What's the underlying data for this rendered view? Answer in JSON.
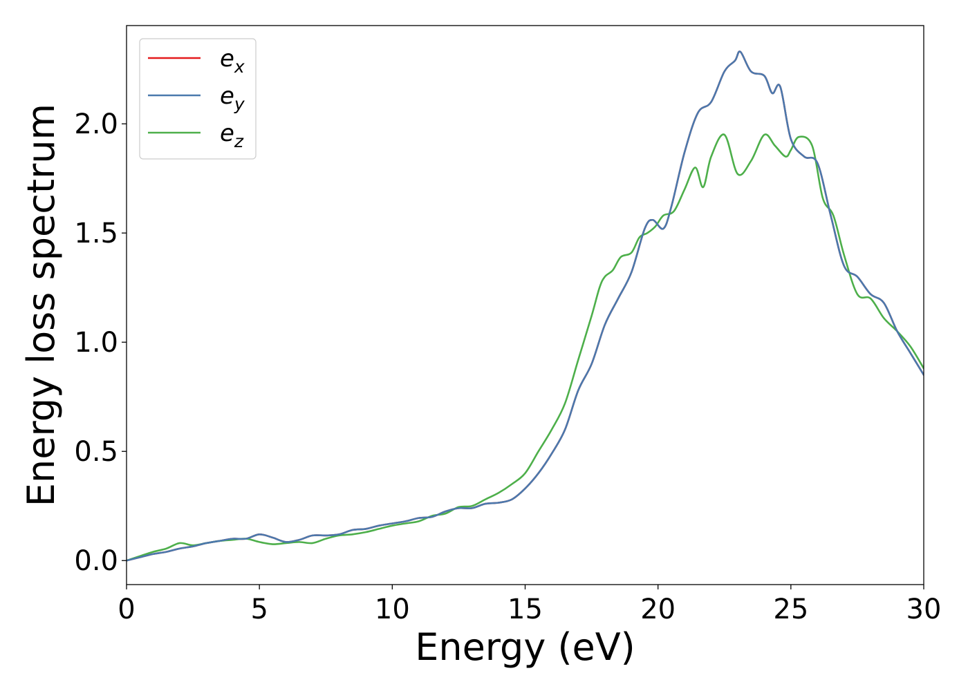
{
  "chart_data": {
    "type": "line",
    "title": "",
    "xlabel": "Energy (eV)",
    "ylabel": "Energy loss spectrum",
    "xlim": [
      0,
      30
    ],
    "ylim": [
      -0.11,
      2.45
    ],
    "xticks": [
      "0",
      "5",
      "10",
      "15",
      "20",
      "25",
      "30"
    ],
    "yticks": [
      "0.0",
      "0.5",
      "1.0",
      "1.5",
      "2.0"
    ],
    "grid": false,
    "legend_position": "top-left",
    "series": [
      {
        "name": "e_x",
        "label_main": "e",
        "label_sub": "x",
        "color": "#e41a1c",
        "x": [
          0,
          0.5,
          1,
          1.5,
          2,
          2.5,
          3,
          3.5,
          4,
          4.5,
          5,
          5.5,
          6,
          6.5,
          7,
          7.5,
          8,
          8.5,
          9,
          9.5,
          10,
          10.5,
          11,
          11.5,
          12,
          12.5,
          13,
          13.5,
          14,
          14.5,
          15,
          15.5,
          16,
          16.5,
          17,
          17.5,
          18,
          18.5,
          19,
          19.5,
          19.8,
          20.2,
          20.5,
          21,
          21.5,
          22,
          22.5,
          22.9,
          23.1,
          23.5,
          24,
          24.3,
          24.6,
          25,
          25.5,
          26,
          26.5,
          27,
          27.5,
          28,
          28.5,
          29,
          29.5,
          30
        ],
        "y": [
          0.0,
          0.015,
          0.03,
          0.04,
          0.055,
          0.065,
          0.08,
          0.09,
          0.1,
          0.1,
          0.12,
          0.105,
          0.085,
          0.095,
          0.115,
          0.115,
          0.12,
          0.14,
          0.145,
          0.16,
          0.17,
          0.18,
          0.195,
          0.2,
          0.225,
          0.24,
          0.24,
          0.26,
          0.265,
          0.28,
          0.33,
          0.4,
          0.49,
          0.6,
          0.78,
          0.9,
          1.08,
          1.2,
          1.32,
          1.52,
          1.56,
          1.52,
          1.62,
          1.87,
          2.05,
          2.1,
          2.24,
          2.29,
          2.33,
          2.24,
          2.22,
          2.14,
          2.17,
          1.93,
          1.85,
          1.82,
          1.58,
          1.35,
          1.3,
          1.22,
          1.18,
          1.05,
          0.95,
          0.85
        ]
      },
      {
        "name": "e_y",
        "label_main": "e",
        "label_sub": "y",
        "color": "#4a79ad",
        "x": [
          0,
          0.5,
          1,
          1.5,
          2,
          2.5,
          3,
          3.5,
          4,
          4.5,
          5,
          5.5,
          6,
          6.5,
          7,
          7.5,
          8,
          8.5,
          9,
          9.5,
          10,
          10.5,
          11,
          11.5,
          12,
          12.5,
          13,
          13.5,
          14,
          14.5,
          15,
          15.5,
          16,
          16.5,
          17,
          17.5,
          18,
          18.5,
          19,
          19.5,
          19.8,
          20.2,
          20.5,
          21,
          21.5,
          22,
          22.5,
          22.9,
          23.1,
          23.5,
          24,
          24.3,
          24.6,
          25,
          25.5,
          26,
          26.5,
          27,
          27.5,
          28,
          28.5,
          29,
          29.5,
          30
        ],
        "y": [
          0.0,
          0.015,
          0.03,
          0.04,
          0.055,
          0.065,
          0.08,
          0.09,
          0.1,
          0.1,
          0.12,
          0.105,
          0.085,
          0.095,
          0.115,
          0.115,
          0.12,
          0.14,
          0.145,
          0.16,
          0.17,
          0.18,
          0.195,
          0.2,
          0.225,
          0.24,
          0.24,
          0.26,
          0.265,
          0.28,
          0.33,
          0.4,
          0.49,
          0.6,
          0.78,
          0.9,
          1.08,
          1.2,
          1.32,
          1.52,
          1.56,
          1.52,
          1.62,
          1.87,
          2.05,
          2.1,
          2.24,
          2.29,
          2.33,
          2.24,
          2.22,
          2.14,
          2.17,
          1.93,
          1.85,
          1.82,
          1.58,
          1.35,
          1.3,
          1.22,
          1.18,
          1.05,
          0.95,
          0.85
        ]
      },
      {
        "name": "e_z",
        "label_main": "e",
        "label_sub": "z",
        "color": "#4daf4a",
        "x": [
          0,
          0.5,
          1,
          1.5,
          2,
          2.5,
          3,
          3.5,
          4,
          4.5,
          5,
          5.5,
          6,
          6.5,
          7,
          7.5,
          8,
          8.5,
          9,
          9.5,
          10,
          10.5,
          11,
          11.5,
          12,
          12.5,
          13,
          13.5,
          14,
          14.5,
          15,
          15.5,
          16,
          16.5,
          17,
          17.5,
          17.8,
          18,
          18.3,
          18.6,
          19,
          19.3,
          19.6,
          19.9,
          20.2,
          20.6,
          21,
          21.4,
          21.7,
          22,
          22.5,
          23,
          23.5,
          24,
          24.4,
          24.8,
          25,
          25.3,
          25.8,
          26.2,
          26.6,
          27,
          27.5,
          28,
          28.5,
          29,
          29.5,
          30
        ],
        "y": [
          0.0,
          0.02,
          0.04,
          0.055,
          0.08,
          0.07,
          0.08,
          0.09,
          0.095,
          0.1,
          0.085,
          0.075,
          0.08,
          0.085,
          0.08,
          0.1,
          0.115,
          0.12,
          0.13,
          0.145,
          0.16,
          0.17,
          0.18,
          0.205,
          0.215,
          0.245,
          0.25,
          0.28,
          0.31,
          0.35,
          0.4,
          0.5,
          0.6,
          0.72,
          0.92,
          1.12,
          1.25,
          1.3,
          1.33,
          1.39,
          1.41,
          1.48,
          1.5,
          1.53,
          1.58,
          1.6,
          1.7,
          1.8,
          1.71,
          1.85,
          1.95,
          1.77,
          1.83,
          1.95,
          1.9,
          1.85,
          1.88,
          1.94,
          1.9,
          1.66,
          1.58,
          1.4,
          1.22,
          1.2,
          1.11,
          1.05,
          0.98,
          0.88
        ]
      }
    ]
  }
}
